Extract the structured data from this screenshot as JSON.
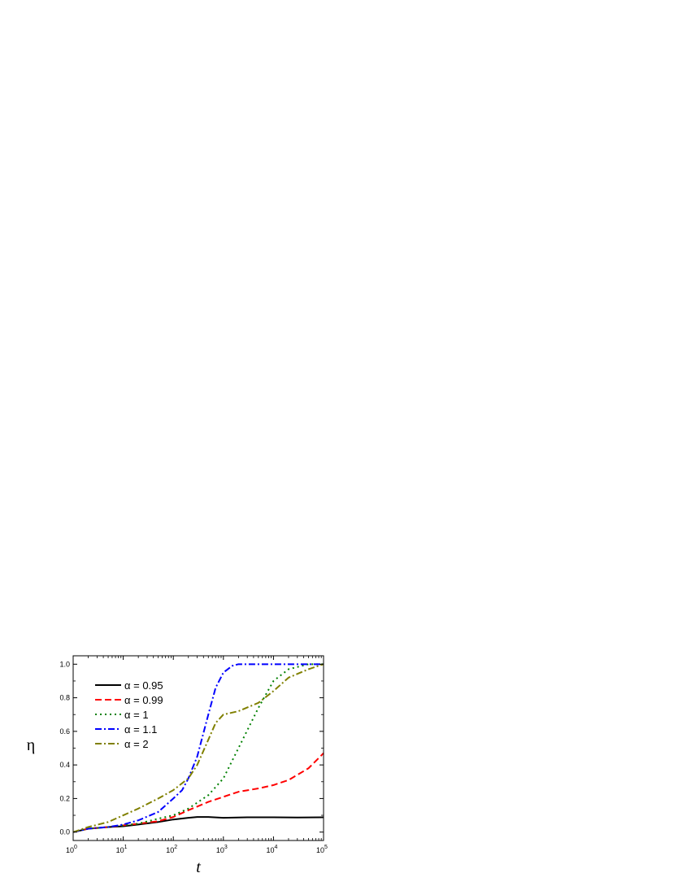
{
  "chart_data": {
    "type": "line",
    "title": "",
    "xlabel": "t",
    "ylabel": "η",
    "x_scale": "log",
    "xlim": [
      1,
      100000
    ],
    "ylim": [
      -0.05,
      1.05
    ],
    "x_ticks": [
      {
        "value": 1,
        "base": "10",
        "exp": "0"
      },
      {
        "value": 10,
        "base": "10",
        "exp": "1"
      },
      {
        "value": 100,
        "base": "10",
        "exp": "2"
      },
      {
        "value": 1000,
        "base": "10",
        "exp": "3"
      },
      {
        "value": 10000,
        "base": "10",
        "exp": "4"
      },
      {
        "value": 100000,
        "base": "10",
        "exp": "5"
      }
    ],
    "y_ticks": [
      "0.0",
      "0.2",
      "0.4",
      "0.6",
      "0.8",
      "1.0"
    ],
    "legend_position": "top-left",
    "grid": false,
    "series": [
      {
        "name": "α = 0.95",
        "color": "#000000",
        "dash": "solid",
        "x": [
          1,
          2,
          5,
          10,
          20,
          50,
          100,
          200,
          300,
          500,
          1000,
          3000,
          10000,
          30000,
          100000
        ],
        "y": [
          0.0,
          0.02,
          0.03,
          0.035,
          0.045,
          0.06,
          0.075,
          0.085,
          0.09,
          0.09,
          0.085,
          0.088,
          0.088,
          0.087,
          0.088
        ]
      },
      {
        "name": "α = 0.99",
        "color": "#ff0000",
        "dash": "dash",
        "x": [
          1,
          2,
          5,
          10,
          20,
          50,
          100,
          200,
          500,
          1000,
          2000,
          5000,
          10000,
          20000,
          50000,
          100000
        ],
        "y": [
          0.0,
          0.02,
          0.03,
          0.04,
          0.05,
          0.065,
          0.09,
          0.13,
          0.18,
          0.21,
          0.24,
          0.26,
          0.28,
          0.31,
          0.38,
          0.47
        ]
      },
      {
        "name": "α = 1",
        "color": "#008000",
        "dash": "dot",
        "x": [
          1,
          2,
          5,
          10,
          20,
          50,
          100,
          200,
          500,
          1000,
          2000,
          5000,
          10000,
          20000,
          50000,
          100000
        ],
        "y": [
          0.0,
          0.02,
          0.03,
          0.04,
          0.05,
          0.08,
          0.1,
          0.14,
          0.22,
          0.32,
          0.5,
          0.74,
          0.9,
          0.97,
          1.0,
          1.0
        ]
      },
      {
        "name": "α = 1.1",
        "color": "#0000ff",
        "dash": "dashdot",
        "x": [
          1,
          2,
          5,
          10,
          20,
          50,
          100,
          150,
          200,
          300,
          500,
          700,
          1000,
          1500,
          2000,
          5000,
          100000
        ],
        "y": [
          0.0,
          0.02,
          0.03,
          0.045,
          0.07,
          0.12,
          0.2,
          0.25,
          0.32,
          0.45,
          0.7,
          0.86,
          0.95,
          0.99,
          1.0,
          1.0,
          1.0
        ]
      },
      {
        "name": "α = 2",
        "color": "#808000",
        "dash": "dashdot",
        "x": [
          1,
          2,
          5,
          10,
          20,
          50,
          100,
          200,
          300,
          500,
          700,
          1000,
          2000,
          5000,
          10000,
          20000,
          50000,
          100000
        ],
        "y": [
          0.0,
          0.03,
          0.06,
          0.1,
          0.14,
          0.2,
          0.25,
          0.32,
          0.4,
          0.55,
          0.65,
          0.7,
          0.72,
          0.77,
          0.84,
          0.92,
          0.97,
          1.0
        ]
      }
    ]
  }
}
